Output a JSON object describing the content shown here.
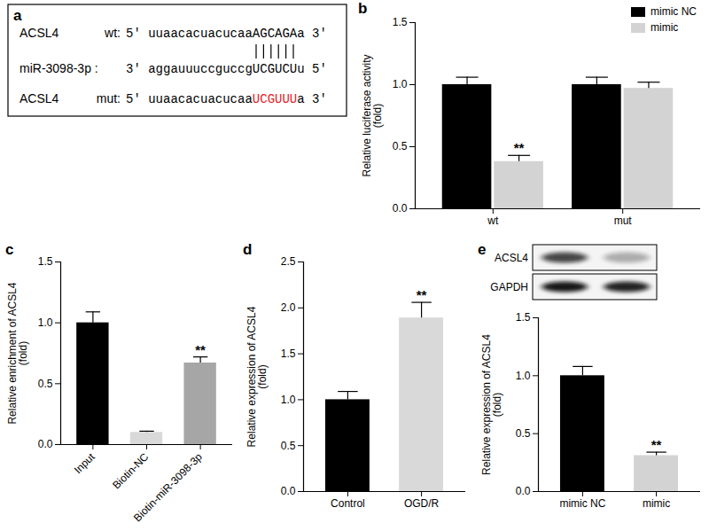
{
  "diagram": {
    "panel": "a",
    "rows": [
      {
        "gene": "ACSL4",
        "tag": "wt:",
        "prefix": "5' uuaacacuacucaa",
        "site": "AGCAGA",
        "suffix": "a 3'"
      },
      {
        "gene": "miR-3098-3p :",
        "prefix": "3' aggauuuccguccg",
        "site": "UCGUCU",
        "suffix": "u 5'"
      },
      {
        "gene": "ACSL4",
        "tag": "mut:",
        "prefix": "5' uuaacacuacucaa",
        "site": "UCGUUU",
        "suffix": "a 3'",
        "site_color": "#e8171f"
      }
    ]
  },
  "chart_data": [
    {
      "panel": "b",
      "type": "bar",
      "categories": [
        "wt",
        "mut"
      ],
      "series": [
        {
          "name": "mimic NC",
          "color": "#000000",
          "values": [
            1.0,
            1.0
          ],
          "errors": [
            0.06,
            0.06
          ]
        },
        {
          "name": "mimic",
          "color": "#d3d3d3",
          "values": [
            0.38,
            0.97
          ],
          "errors": [
            0.05,
            0.05
          ]
        }
      ],
      "ylabel": "Relative luciferase activity\n(fold)",
      "ylim": [
        0,
        1.5
      ],
      "yticks": [
        {
          "value": 0,
          "label": "0.0"
        },
        {
          "value": 0.5,
          "label": "0.5"
        },
        {
          "value": 1,
          "label": "1.0"
        },
        {
          "value": 1.5,
          "label": "1.5"
        }
      ],
      "legend": "top-right",
      "annotations": [
        {
          "text": "**",
          "category": "wt",
          "series": "mimic"
        }
      ]
    },
    {
      "panel": "c",
      "type": "bar",
      "categories": [
        "Input",
        "Biotin-NC",
        "Biotin-miR-3098-3p"
      ],
      "values": [
        1.0,
        0.1,
        0.67
      ],
      "errors": [
        0.09,
        0.01,
        0.05
      ],
      "colors": [
        "#000000",
        "#d9d9d9",
        "#a6a6a6"
      ],
      "ylabel": "Relative enrichment of ACSL4\n(fold)",
      "ylim": [
        0,
        1.5
      ],
      "yticks": [
        {
          "value": 0,
          "label": "0.0"
        },
        {
          "value": 0.5,
          "label": "0.5"
        },
        {
          "value": 1,
          "label": "1.0"
        },
        {
          "value": 1.5,
          "label": "1.5"
        }
      ],
      "annotations": [
        {
          "text": "**",
          "category": "Biotin-miR-3098-3p"
        }
      ]
    },
    {
      "panel": "d",
      "type": "bar",
      "categories": [
        "Control",
        "OGD/R"
      ],
      "values": [
        1.0,
        1.89
      ],
      "errors": [
        0.09,
        0.17
      ],
      "colors": [
        "#000000",
        "#d9d9d9"
      ],
      "ylabel": "Relative expression of ACSL4\n(fold)",
      "ylim": [
        0,
        2.5
      ],
      "yticks": [
        {
          "value": 0,
          "label": "0.0"
        },
        {
          "value": 0.5,
          "label": "0.5"
        },
        {
          "value": 1,
          "label": "1.0"
        },
        {
          "value": 1.5,
          "label": "1.5"
        },
        {
          "value": 2,
          "label": "2.0"
        },
        {
          "value": 2.5,
          "label": "2.5"
        }
      ],
      "annotations": [
        {
          "text": "**",
          "category": "OGD/R"
        }
      ]
    },
    {
      "panel": "e",
      "type": "bar",
      "categories": [
        "mimic NC",
        "mimic"
      ],
      "values": [
        1.0,
        0.31
      ],
      "errors": [
        0.08,
        0.03
      ],
      "colors": [
        "#000000",
        "#d3d3d3"
      ],
      "ylabel": "Relative expression of ACSL4\n(fold)",
      "ylim": [
        0,
        1.5
      ],
      "yticks": [
        {
          "value": 0,
          "label": "0.0"
        },
        {
          "value": 0.5,
          "label": "0.5"
        },
        {
          "value": 1,
          "label": "1.0"
        },
        {
          "value": 1.5,
          "label": "1.5"
        }
      ],
      "blot_labels": [
        "ACSL4",
        "GAPDH"
      ],
      "annotations": [
        {
          "text": "**",
          "category": "mimic"
        }
      ]
    }
  ]
}
